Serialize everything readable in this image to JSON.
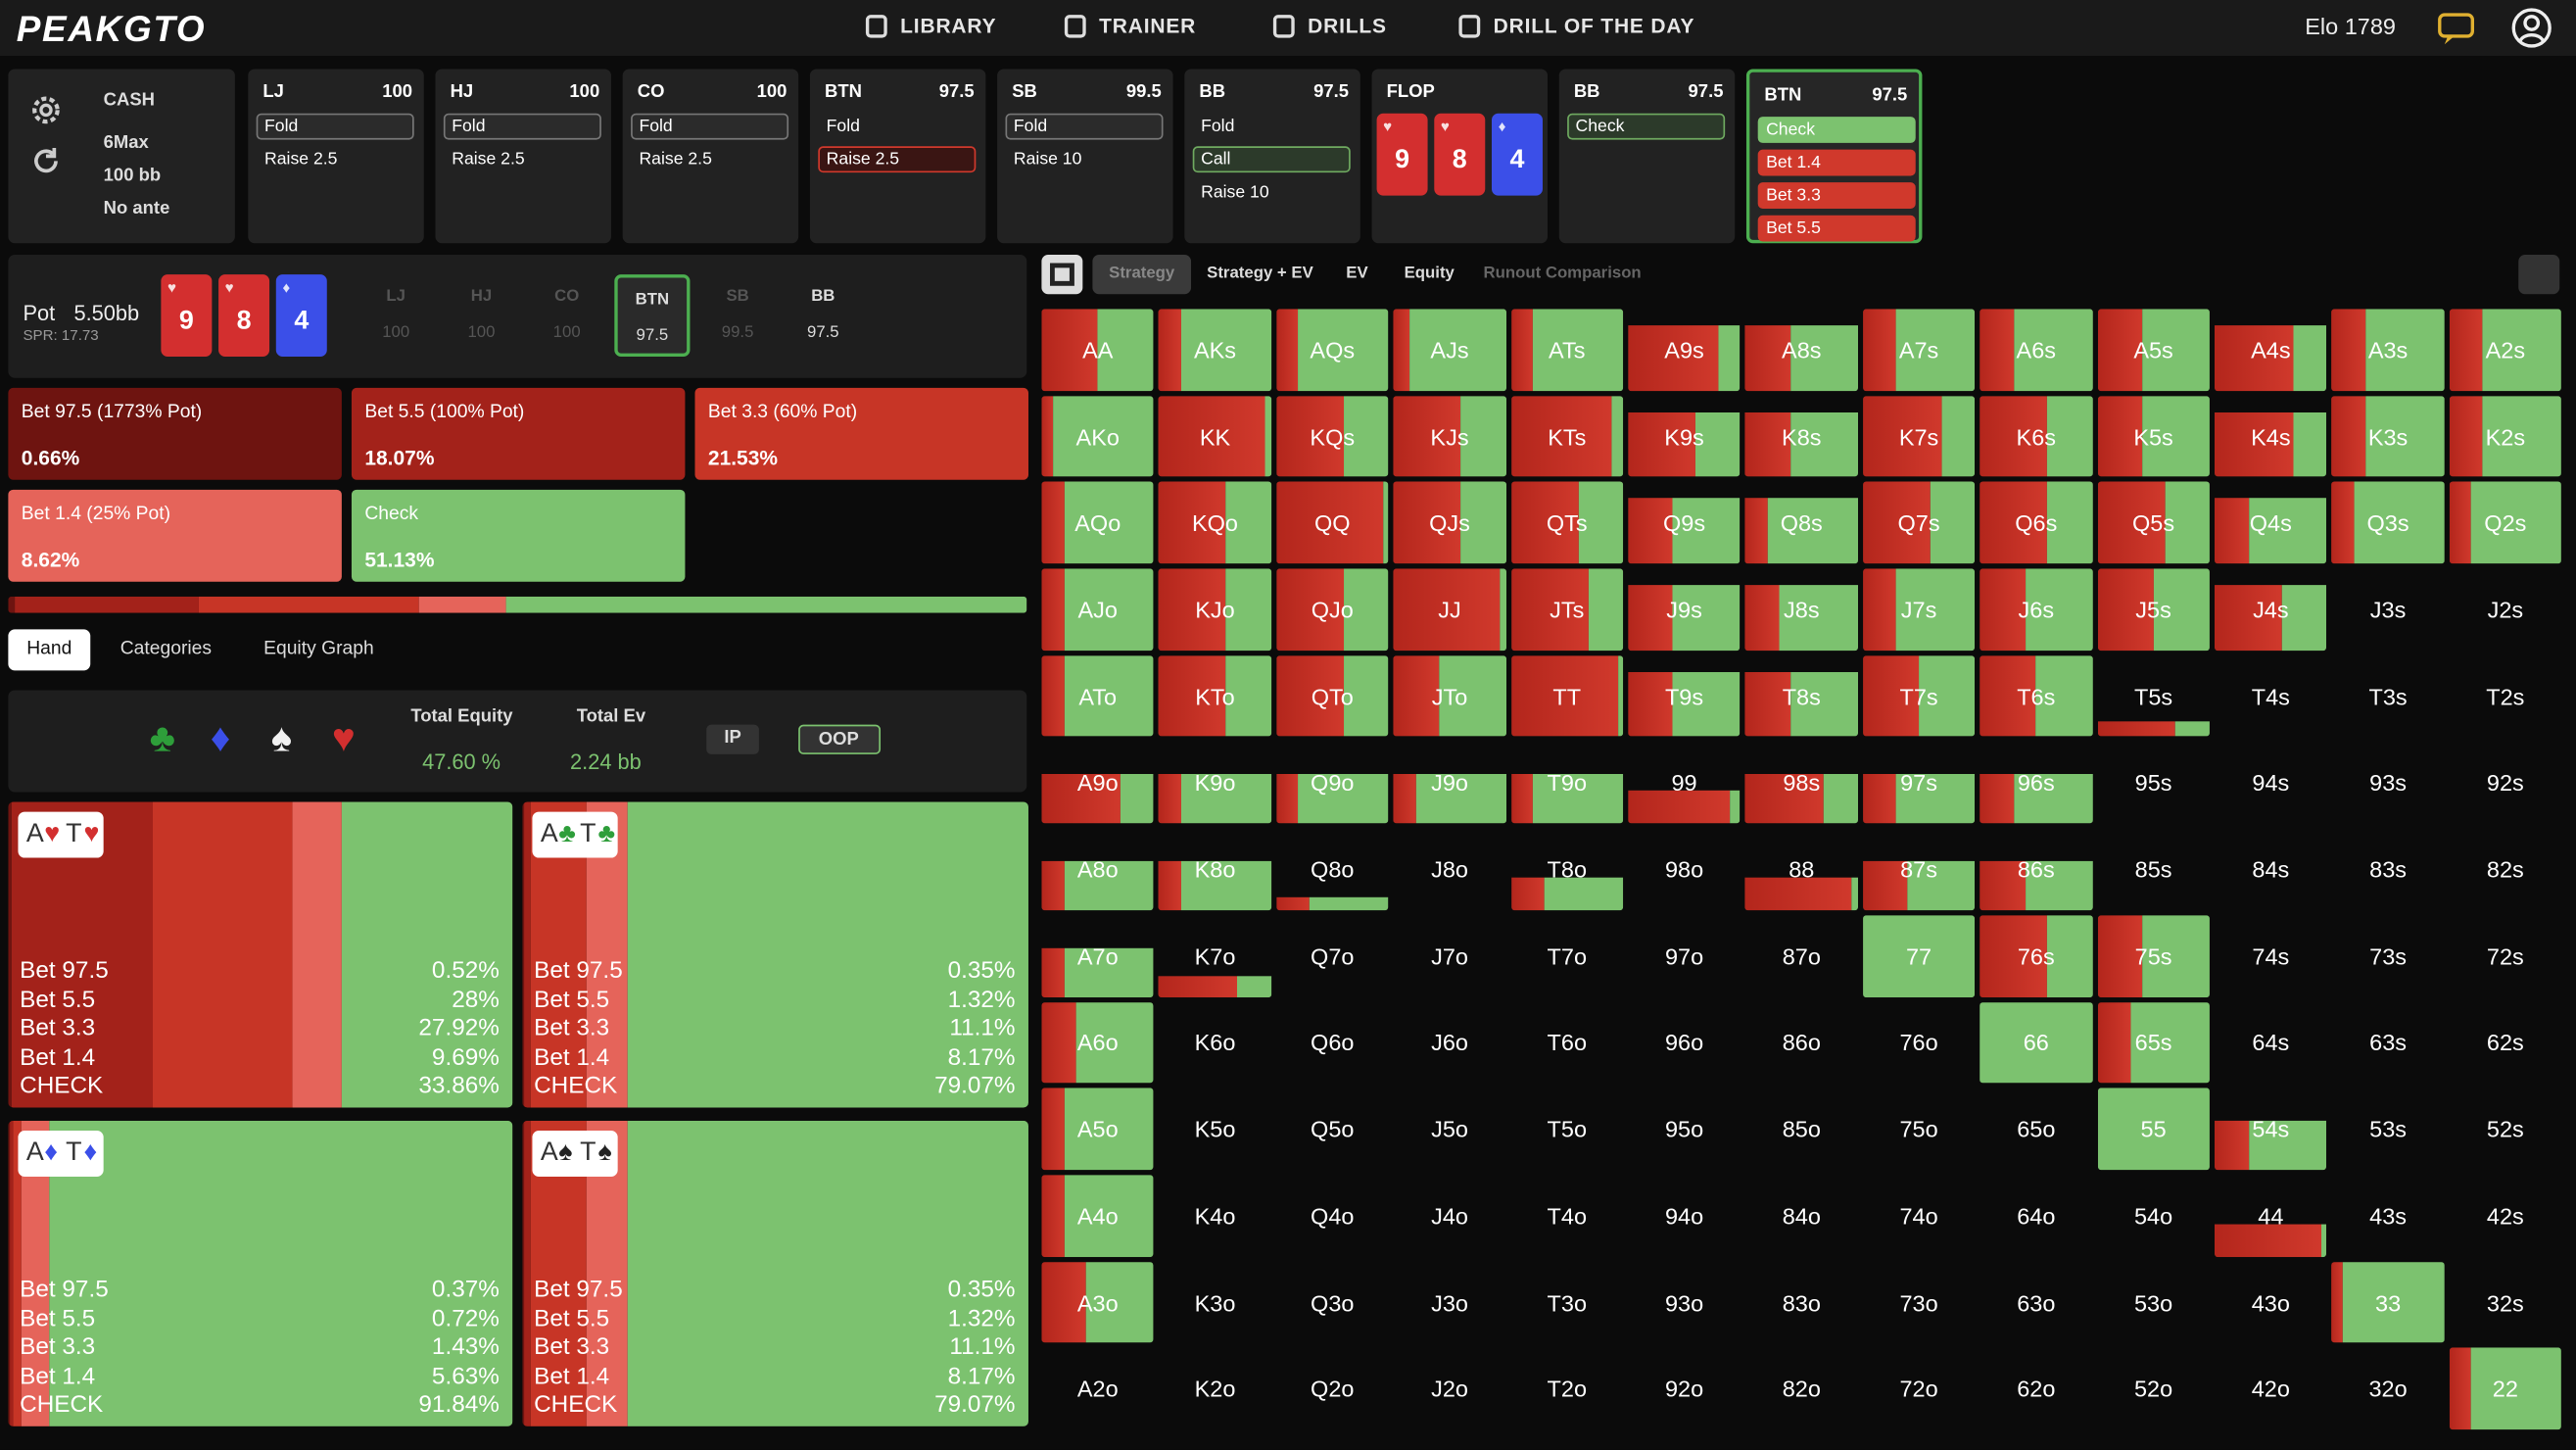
{
  "header": {
    "logo": "PEAKGTO",
    "nav": [
      "LIBRARY",
      "TRAINER",
      "DRILLS",
      "DRILL OF THE DAY"
    ],
    "elo": "Elo 1789"
  },
  "game": {
    "lines": [
      "CASH",
      "6Max",
      "100 bb",
      "No ante"
    ]
  },
  "board": [
    {
      "rank": "9",
      "suit": "♥"
    },
    {
      "rank": "8",
      "suit": "♥"
    },
    {
      "rank": "4",
      "suit": "♦"
    }
  ],
  "history": [
    {
      "name": "LJ",
      "stack": 100,
      "actions": [
        "Fold",
        "Raise 2.5"
      ],
      "selected": 0
    },
    {
      "name": "HJ",
      "stack": 100,
      "actions": [
        "Fold",
        "Raise 2.5"
      ],
      "selected": 0
    },
    {
      "name": "CO",
      "stack": 100,
      "actions": [
        "Fold",
        "Raise 2.5"
      ],
      "selected": 0
    },
    {
      "name": "BTN",
      "stack": 97.5,
      "actions": [
        "Fold",
        "Raise 2.5"
      ],
      "selected": 1
    },
    {
      "name": "SB",
      "stack": 99.5,
      "actions": [
        "Fold",
        "Raise 10"
      ],
      "selected": 0
    },
    {
      "name": "BB",
      "stack": 97.5,
      "actions": [
        "Fold",
        "Call",
        "Raise 10"
      ],
      "selected": 1
    },
    {
      "name": "FLOP"
    },
    {
      "name": "BB",
      "stack": 97.5,
      "actions": [
        "Check"
      ],
      "selected": 0
    },
    {
      "name": "BTN",
      "stack": 97.5,
      "actions": [
        "Check",
        "Bet 1.4",
        "Bet 3.3",
        "Bet 5.5"
      ],
      "current": true
    }
  ],
  "pot": {
    "label": "Pot",
    "value": "5.50bb",
    "spr": "SPR: 17.73",
    "active": 3,
    "seats": [
      {
        "name": "LJ",
        "stack": 100
      },
      {
        "name": "HJ",
        "stack": 100
      },
      {
        "name": "CO",
        "stack": 100
      },
      {
        "name": "BTN",
        "stack": 97.5
      },
      {
        "name": "SB",
        "stack": 99.5
      },
      {
        "name": "BB",
        "stack": 97.5
      }
    ]
  },
  "actions": [
    {
      "name": "Bet 97.5 (1773% Pot)",
      "short": "Bet 97.5",
      "color": "#6e1410",
      "freq": {
        "value": 0.66,
        "label": "0.66%"
      }
    },
    {
      "name": "Bet 5.5 (100% Pot)",
      "short": "Bet 5.5",
      "color": "#a3221a",
      "freq": {
        "value": 18.07,
        "label": "18.07%"
      }
    },
    {
      "name": "Bet 3.3 (60% Pot)",
      "short": "Bet 3.3",
      "color": "#c73526",
      "freq": {
        "value": 21.53,
        "label": "21.53%"
      }
    },
    {
      "name": "Bet 1.4 (25% Pot)",
      "short": "Bet 1.4",
      "color": "#e5645a",
      "freq": {
        "value": 8.62,
        "label": "8.62%"
      }
    },
    {
      "name": "Check",
      "short": "CHECK",
      "color": "#7cc26f",
      "freq": {
        "value": 51.13,
        "label": "51.13%"
      }
    }
  ],
  "tabs": [
    "Hand",
    "Categories",
    "Equity Graph"
  ],
  "tab_selected": 0,
  "equity": {
    "suits": [
      "♣",
      "♦",
      "♠",
      "♥"
    ],
    "total_equity_label": "Total Equity",
    "total_equity": "47.60 %",
    "total_ev_label": "Total Ev",
    "total_ev": "2.24 bb",
    "toggles": [
      "IP",
      "OOP"
    ],
    "selected": 1
  },
  "hands": [
    {
      "cards": [
        {
          "rank": "A",
          "suit": "♥"
        },
        {
          "rank": "T",
          "suit": "♥"
        }
      ],
      "freqs": [
        {
          "value": 0.52,
          "label": "0.52%"
        },
        {
          "value": 28,
          "label": "28%"
        },
        {
          "value": 27.92,
          "label": "27.92%"
        },
        {
          "value": 9.69,
          "label": "9.69%"
        },
        {
          "value": 33.86,
          "label": "33.86%"
        }
      ]
    },
    {
      "cards": [
        {
          "rank": "A",
          "suit": "♣"
        },
        {
          "rank": "T",
          "suit": "♣"
        }
      ],
      "freqs": [
        {
          "value": 0.35,
          "label": "0.35%"
        },
        {
          "value": 1.32,
          "label": "1.32%"
        },
        {
          "value": 11.1,
          "label": "11.1%"
        },
        {
          "value": 8.17,
          "label": "8.17%"
        },
        {
          "value": 79.07,
          "label": "79.07%"
        }
      ]
    },
    {
      "cards": [
        {
          "rank": "A",
          "suit": "♦"
        },
        {
          "rank": "T",
          "suit": "♦"
        }
      ],
      "freqs": [
        {
          "value": 0.37,
          "label": "0.37%"
        },
        {
          "value": 0.72,
          "label": "0.72%"
        },
        {
          "value": 1.43,
          "label": "1.43%"
        },
        {
          "value": 5.63,
          "label": "5.63%"
        },
        {
          "value": 91.84,
          "label": "91.84%"
        }
      ]
    },
    {
      "cards": [
        {
          "rank": "A",
          "suit": "♠"
        },
        {
          "rank": "T",
          "suit": "♠"
        }
      ],
      "freqs": [
        {
          "value": 0.35,
          "label": "0.35%"
        },
        {
          "value": 1.32,
          "label": "1.32%"
        },
        {
          "value": 11.1,
          "label": "11.1%"
        },
        {
          "value": 8.17,
          "label": "8.17%"
        },
        {
          "value": 79.07,
          "label": "79.07%"
        }
      ]
    }
  ],
  "view_tabs": [
    "Strategy",
    "Strategy + EV",
    "EV",
    "Equity",
    "Runout Comparison"
  ],
  "view_selected": 0,
  "range_grid": {
    "labels": [
      [
        "AA",
        "AKs",
        "AQs",
        "AJs",
        "ATs",
        "A9s",
        "A8s",
        "A7s",
        "A6s",
        "A5s",
        "A4s",
        "A3s",
        "A2s"
      ],
      [
        "AKo",
        "KK",
        "KQs",
        "KJs",
        "KTs",
        "K9s",
        "K8s",
        "K7s",
        "K6s",
        "K5s",
        "K4s",
        "K3s",
        "K2s"
      ],
      [
        "AQo",
        "KQo",
        "QQ",
        "QJs",
        "QTs",
        "Q9s",
        "Q8s",
        "Q7s",
        "Q6s",
        "Q5s",
        "Q4s",
        "Q3s",
        "Q2s"
      ],
      [
        "AJo",
        "KJo",
        "QJo",
        "JJ",
        "JTs",
        "J9s",
        "J8s",
        "J7s",
        "J6s",
        "J5s",
        "J4s",
        "J3s",
        "J2s"
      ],
      [
        "ATo",
        "KTo",
        "QTo",
        "JTo",
        "TT",
        "T9s",
        "T8s",
        "T7s",
        "T6s",
        "T5s",
        "T4s",
        "T3s",
        "T2s"
      ],
      [
        "A9o",
        "K9o",
        "Q9o",
        "J9o",
        "T9o",
        "99",
        "98s",
        "97s",
        "96s",
        "95s",
        "94s",
        "93s",
        "92s"
      ],
      [
        "A8o",
        "K8o",
        "Q8o",
        "J8o",
        "T8o",
        "98o",
        "88",
        "87s",
        "86s",
        "85s",
        "84s",
        "83s",
        "82s"
      ],
      [
        "A7o",
        "K7o",
        "Q7o",
        "J7o",
        "T7o",
        "97o",
        "87o",
        "77",
        "76s",
        "75s",
        "74s",
        "73s",
        "72s"
      ],
      [
        "A6o",
        "K6o",
        "Q6o",
        "J6o",
        "T6o",
        "96o",
        "86o",
        "76o",
        "66",
        "65s",
        "64s",
        "63s",
        "62s"
      ],
      [
        "A5o",
        "K5o",
        "Q5o",
        "J5o",
        "T5o",
        "95o",
        "85o",
        "75o",
        "65o",
        "55",
        "54s",
        "53s",
        "52s"
      ],
      [
        "A4o",
        "K4o",
        "Q4o",
        "J4o",
        "T4o",
        "94o",
        "84o",
        "74o",
        "64o",
        "54o",
        "44",
        "43s",
        "42s"
      ],
      [
        "A3o",
        "K3o",
        "Q3o",
        "J3o",
        "T3o",
        "93o",
        "83o",
        "73o",
        "63o",
        "53o",
        "43o",
        "33",
        "32s"
      ],
      [
        "A2o",
        "K2o",
        "Q2o",
        "J2o",
        "T2o",
        "92o",
        "82o",
        "72o",
        "62o",
        "52o",
        "42o",
        "32o",
        "22"
      ]
    ],
    "weights": [
      [
        100,
        100,
        100,
        100,
        100,
        80,
        80,
        100,
        100,
        100,
        80,
        100,
        100
      ],
      [
        100,
        100,
        100,
        100,
        100,
        80,
        80,
        100,
        100,
        100,
        80,
        100,
        100
      ],
      [
        100,
        100,
        100,
        100,
        100,
        80,
        80,
        100,
        100,
        100,
        80,
        100,
        100
      ],
      [
        100,
        100,
        100,
        100,
        100,
        80,
        80,
        100,
        100,
        100,
        80,
        0,
        0
      ],
      [
        100,
        100,
        100,
        100,
        100,
        80,
        80,
        100,
        100,
        20,
        0,
        0,
        0
      ],
      [
        60,
        60,
        60,
        60,
        60,
        40,
        60,
        60,
        60,
        0,
        0,
        0,
        0
      ],
      [
        60,
        60,
        15,
        0,
        40,
        0,
        40,
        60,
        60,
        0,
        0,
        0,
        0
      ],
      [
        60,
        25,
        0,
        0,
        0,
        0,
        0,
        100,
        100,
        100,
        0,
        0,
        0
      ],
      [
        100,
        0,
        0,
        0,
        0,
        0,
        0,
        0,
        100,
        100,
        0,
        0,
        0
      ],
      [
        100,
        0,
        0,
        0,
        0,
        0,
        0,
        0,
        0,
        100,
        60,
        0,
        0
      ],
      [
        100,
        0,
        0,
        0,
        0,
        0,
        0,
        0,
        0,
        0,
        40,
        0,
        0
      ],
      [
        100,
        0,
        0,
        0,
        0,
        0,
        0,
        0,
        0,
        0,
        0,
        100,
        0
      ],
      [
        0,
        0,
        0,
        0,
        0,
        0,
        0,
        0,
        0,
        0,
        0,
        0,
        100
      ]
    ],
    "check": [
      [
        50,
        80,
        80,
        85,
        80,
        20,
        60,
        70,
        70,
        60,
        30,
        70,
        70
      ],
      [
        90,
        5,
        40,
        40,
        10,
        40,
        60,
        30,
        40,
        60,
        30,
        70,
        70
      ],
      [
        80,
        40,
        5,
        40,
        40,
        60,
        80,
        40,
        40,
        40,
        70,
        80,
        80
      ],
      [
        80,
        40,
        40,
        5,
        30,
        60,
        70,
        70,
        60,
        50,
        40,
        0,
        0
      ],
      [
        80,
        40,
        40,
        60,
        5,
        60,
        60,
        50,
        50,
        30,
        0,
        0,
        0
      ],
      [
        30,
        80,
        80,
        80,
        80,
        10,
        30,
        70,
        70,
        0,
        0,
        0,
        0
      ],
      [
        80,
        80,
        70,
        0,
        70,
        0,
        5,
        60,
        60,
        0,
        0,
        0,
        0
      ],
      [
        80,
        30,
        0,
        0,
        0,
        0,
        0,
        100,
        40,
        60,
        0,
        0,
        0
      ],
      [
        70,
        0,
        0,
        0,
        0,
        0,
        0,
        0,
        100,
        70,
        0,
        0,
        0
      ],
      [
        80,
        0,
        0,
        0,
        0,
        0,
        0,
        0,
        0,
        100,
        70,
        0,
        0
      ],
      [
        80,
        0,
        0,
        0,
        0,
        0,
        0,
        0,
        0,
        0,
        5,
        0,
        0
      ],
      [
        60,
        0,
        0,
        0,
        0,
        0,
        0,
        0,
        0,
        0,
        0,
        90,
        0
      ],
      [
        0,
        0,
        0,
        0,
        0,
        0,
        0,
        0,
        0,
        0,
        0,
        0,
        80
      ]
    ]
  }
}
